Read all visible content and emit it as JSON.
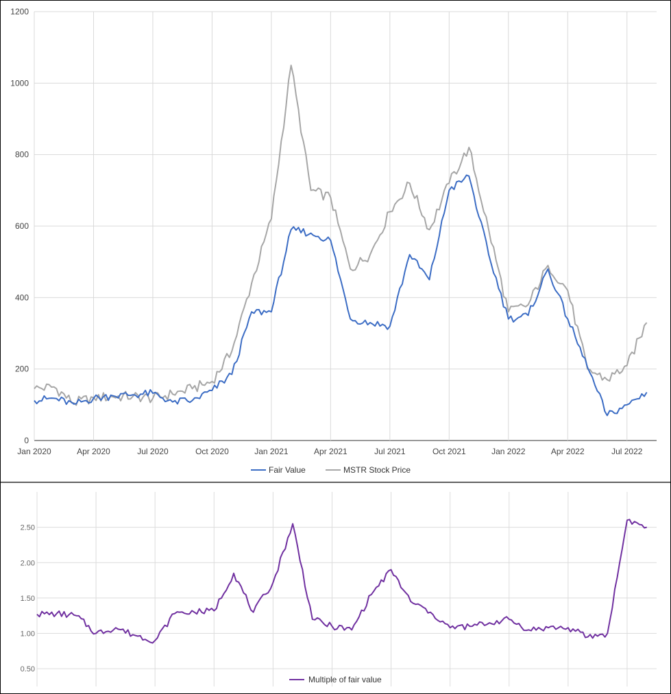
{
  "chart_data": [
    {
      "type": "line",
      "title": "",
      "xlabel": "",
      "ylabel": "",
      "ylim": [
        0,
        1200
      ],
      "grid": true,
      "legend": "bottom",
      "x_tick_labels": [
        "Jan 2020",
        "Apr 2020",
        "Jul 2020",
        "Oct 2020",
        "Jan 2021",
        "Apr 2021",
        "Jul 2021",
        "Oct 2021",
        "Jan 2022",
        "Apr 2022",
        "Jul 2022"
      ],
      "y_ticks": [
        0,
        200,
        400,
        600,
        800,
        1000,
        1200
      ],
      "x": [
        "2020-01",
        "2020-02",
        "2020-03",
        "2020-04",
        "2020-05",
        "2020-06",
        "2020-07",
        "2020-08",
        "2020-09",
        "2020-10",
        "2020-11",
        "2020-12",
        "2021-01",
        "2021-02",
        "2021-03",
        "2021-04",
        "2021-05",
        "2021-06",
        "2021-07",
        "2021-08",
        "2021-09",
        "2021-10",
        "2021-11",
        "2021-12",
        "2022-01",
        "2022-02",
        "2022-03",
        "2022-04",
        "2022-05",
        "2022-06",
        "2022-07",
        "2022-08"
      ],
      "series": [
        {
          "name": "Fair Value",
          "color": "#3b6cc4",
          "values": [
            112,
            118,
            102,
            118,
            125,
            128,
            132,
            108,
            112,
            140,
            185,
            360,
            360,
            590,
            580,
            560,
            340,
            330,
            320,
            520,
            450,
            700,
            740,
            520,
            340,
            350,
            480,
            340,
            205,
            70,
            100,
            135
          ]
        },
        {
          "name": "MSTR Stock Price",
          "color": "#a6a6a6",
          "values": [
            145,
            150,
            105,
            120,
            122,
            124,
            118,
            130,
            145,
            165,
            250,
            440,
            620,
            1050,
            700,
            680,
            480,
            520,
            640,
            720,
            590,
            720,
            820,
            590,
            360,
            380,
            490,
            420,
            200,
            170,
            210,
            330
          ]
        }
      ]
    },
    {
      "type": "line",
      "title": "",
      "xlabel": "",
      "ylabel": "",
      "ylim": [
        0.25,
        3.0
      ],
      "grid": true,
      "legend": "bottom",
      "y_tick_labels": [
        "0.50",
        "1.00",
        "1.50",
        "2.00",
        "2.50"
      ],
      "y_ticks": [
        0.5,
        1.0,
        1.5,
        2.0,
        2.5
      ],
      "x": [
        "2020-01",
        "2020-02",
        "2020-03",
        "2020-04",
        "2020-05",
        "2020-06",
        "2020-07",
        "2020-08",
        "2020-09",
        "2020-10",
        "2020-11",
        "2020-12",
        "2021-01",
        "2021-02",
        "2021-03",
        "2021-04",
        "2021-05",
        "2021-06",
        "2021-07",
        "2021-08",
        "2021-09",
        "2021-10",
        "2021-11",
        "2021-12",
        "2022-01",
        "2022-02",
        "2022-03",
        "2022-04",
        "2022-05",
        "2022-06",
        "2022-07",
        "2022-08"
      ],
      "series": [
        {
          "name": "Multiple of fair value",
          "color": "#7030a0",
          "values": [
            1.27,
            1.28,
            1.25,
            1.0,
            1.08,
            0.97,
            0.9,
            1.28,
            1.3,
            1.32,
            1.85,
            1.3,
            1.72,
            2.55,
            1.2,
            1.1,
            1.05,
            1.55,
            1.9,
            1.45,
            1.3,
            1.08,
            1.1,
            1.15,
            1.2,
            1.05,
            1.08,
            1.08,
            0.95,
            1.0,
            2.6,
            2.5
          ]
        }
      ]
    }
  ]
}
